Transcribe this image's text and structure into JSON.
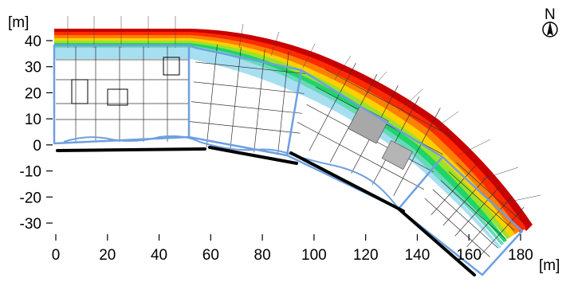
{
  "figure": {
    "y_unit": "[m]",
    "x_unit": "[m]",
    "north_label": "N"
  },
  "chart_data": {
    "type": "diagram",
    "x_ticks": [
      0,
      20,
      40,
      60,
      80,
      100,
      120,
      140,
      160,
      180
    ],
    "y_ticks": [
      40,
      30,
      20,
      10,
      0,
      -10,
      -20,
      -30
    ],
    "xlim": [
      -2,
      185
    ],
    "ylim": [
      -34,
      45
    ],
    "colors": {
      "building_outline": "#6f9fe0",
      "wall": "#000000",
      "contour": [
        "#c80000",
        "#ff2a00",
        "#ff7f00",
        "#ffd000",
        "#9be22b",
        "#1fd46a",
        "#67d9b8",
        "#a6dff0"
      ]
    }
  }
}
